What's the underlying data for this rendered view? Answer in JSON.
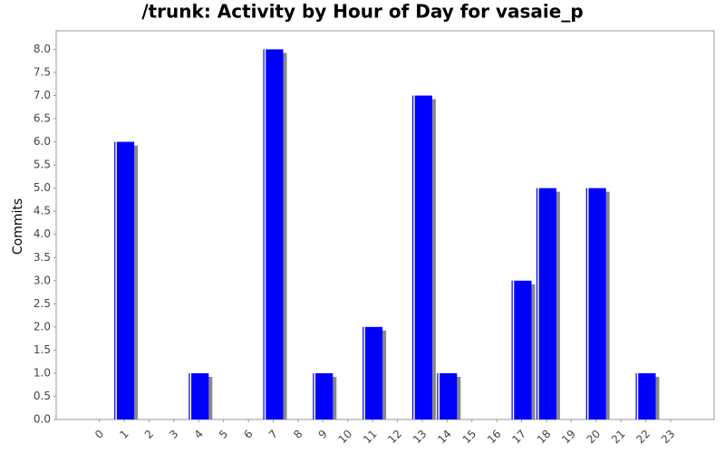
{
  "chart_data": {
    "type": "bar",
    "title": "/trunk: Activity by Hour of Day for vasaie_p",
    "y_label": "Commits",
    "categories": [
      "0",
      "1",
      "2",
      "3",
      "4",
      "5",
      "6",
      "7",
      "8",
      "9",
      "10",
      "11",
      "12",
      "13",
      "14",
      "15",
      "16",
      "17",
      "18",
      "19",
      "20",
      "21",
      "22",
      "23"
    ],
    "values": [
      0,
      6,
      0,
      0,
      1,
      0,
      0,
      8,
      0,
      1,
      0,
      2,
      0,
      7,
      1,
      0,
      0,
      3,
      5,
      0,
      5,
      0,
      1,
      0
    ],
    "color": "#0000ff",
    "ylim": [
      0,
      8.4
    ],
    "yticks": [
      {
        "value": 0,
        "label": "0.0"
      },
      {
        "value": 0.5,
        "label": "0.5"
      },
      {
        "value": 1,
        "label": "1.0"
      },
      {
        "value": 1.5,
        "label": "1.5"
      },
      {
        "value": 2,
        "label": "2.0"
      },
      {
        "value": 2.5,
        "label": "2.5"
      },
      {
        "value": 3,
        "label": "3.0"
      },
      {
        "value": 3.5,
        "label": "3.5"
      },
      {
        "value": 4,
        "label": "4.0"
      },
      {
        "value": 4.5,
        "label": "4.5"
      },
      {
        "value": 5,
        "label": "5.0"
      },
      {
        "value": 5.5,
        "label": "5.5"
      },
      {
        "value": 6,
        "label": "6.0"
      },
      {
        "value": 6.5,
        "label": "6.5"
      },
      {
        "value": 7,
        "label": "7.0"
      },
      {
        "value": 7.5,
        "label": "7.5"
      },
      {
        "value": 8,
        "label": "8.0"
      }
    ],
    "grid": false
  }
}
